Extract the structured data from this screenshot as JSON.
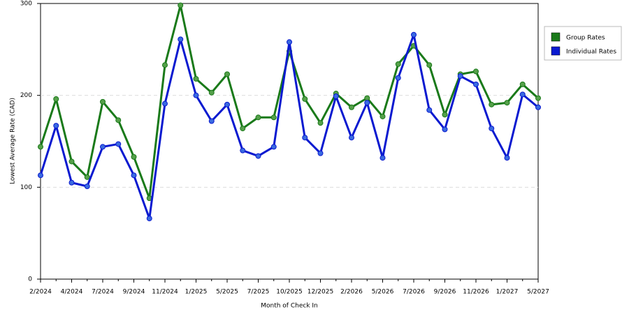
{
  "chart_data": {
    "type": "line",
    "x_label": "Month of Check In",
    "y_label": "Lowest Average Rate (CAD)",
    "categories": [
      "2/2024",
      null,
      "4/2024",
      null,
      "7/2024",
      null,
      "9/2024",
      null,
      "11/2024",
      null,
      "1/2025",
      null,
      "5/2025",
      null,
      "7/2025",
      null,
      "10/2025",
      null,
      "12/2025",
      null,
      "2/2026",
      null,
      "5/2026",
      null,
      "7/2026",
      null,
      "9/2026",
      null,
      "11/2026",
      null,
      "1/2027",
      null,
      "5/2027"
    ],
    "series": [
      {
        "name": "Group Rates",
        "color": "#1a7a1a",
        "marker": "#55a04a",
        "values": [
          144,
          196,
          128,
          111,
          193,
          173,
          133,
          88,
          233,
          298,
          218,
          203,
          223,
          164,
          176,
          176,
          248,
          196,
          170,
          202,
          187,
          197,
          177,
          234,
          254,
          233,
          179,
          223,
          226,
          190,
          192,
          212,
          197
        ]
      },
      {
        "name": "Individual Rates",
        "color": "#0a1ad0",
        "marker": "#3a6ae0",
        "values": [
          113,
          167,
          105,
          101,
          144,
          147,
          113,
          66,
          191,
          261,
          200,
          172,
          190,
          140,
          134,
          144,
          258,
          154,
          137,
          199,
          154,
          192,
          132,
          219,
          266,
          184,
          163,
          221,
          212,
          164,
          132,
          201,
          187
        ]
      }
    ],
    "ylim": [
      0,
      300
    ],
    "yticks": [
      0,
      100,
      200,
      300
    ],
    "grid": true,
    "legend": "top-right"
  }
}
